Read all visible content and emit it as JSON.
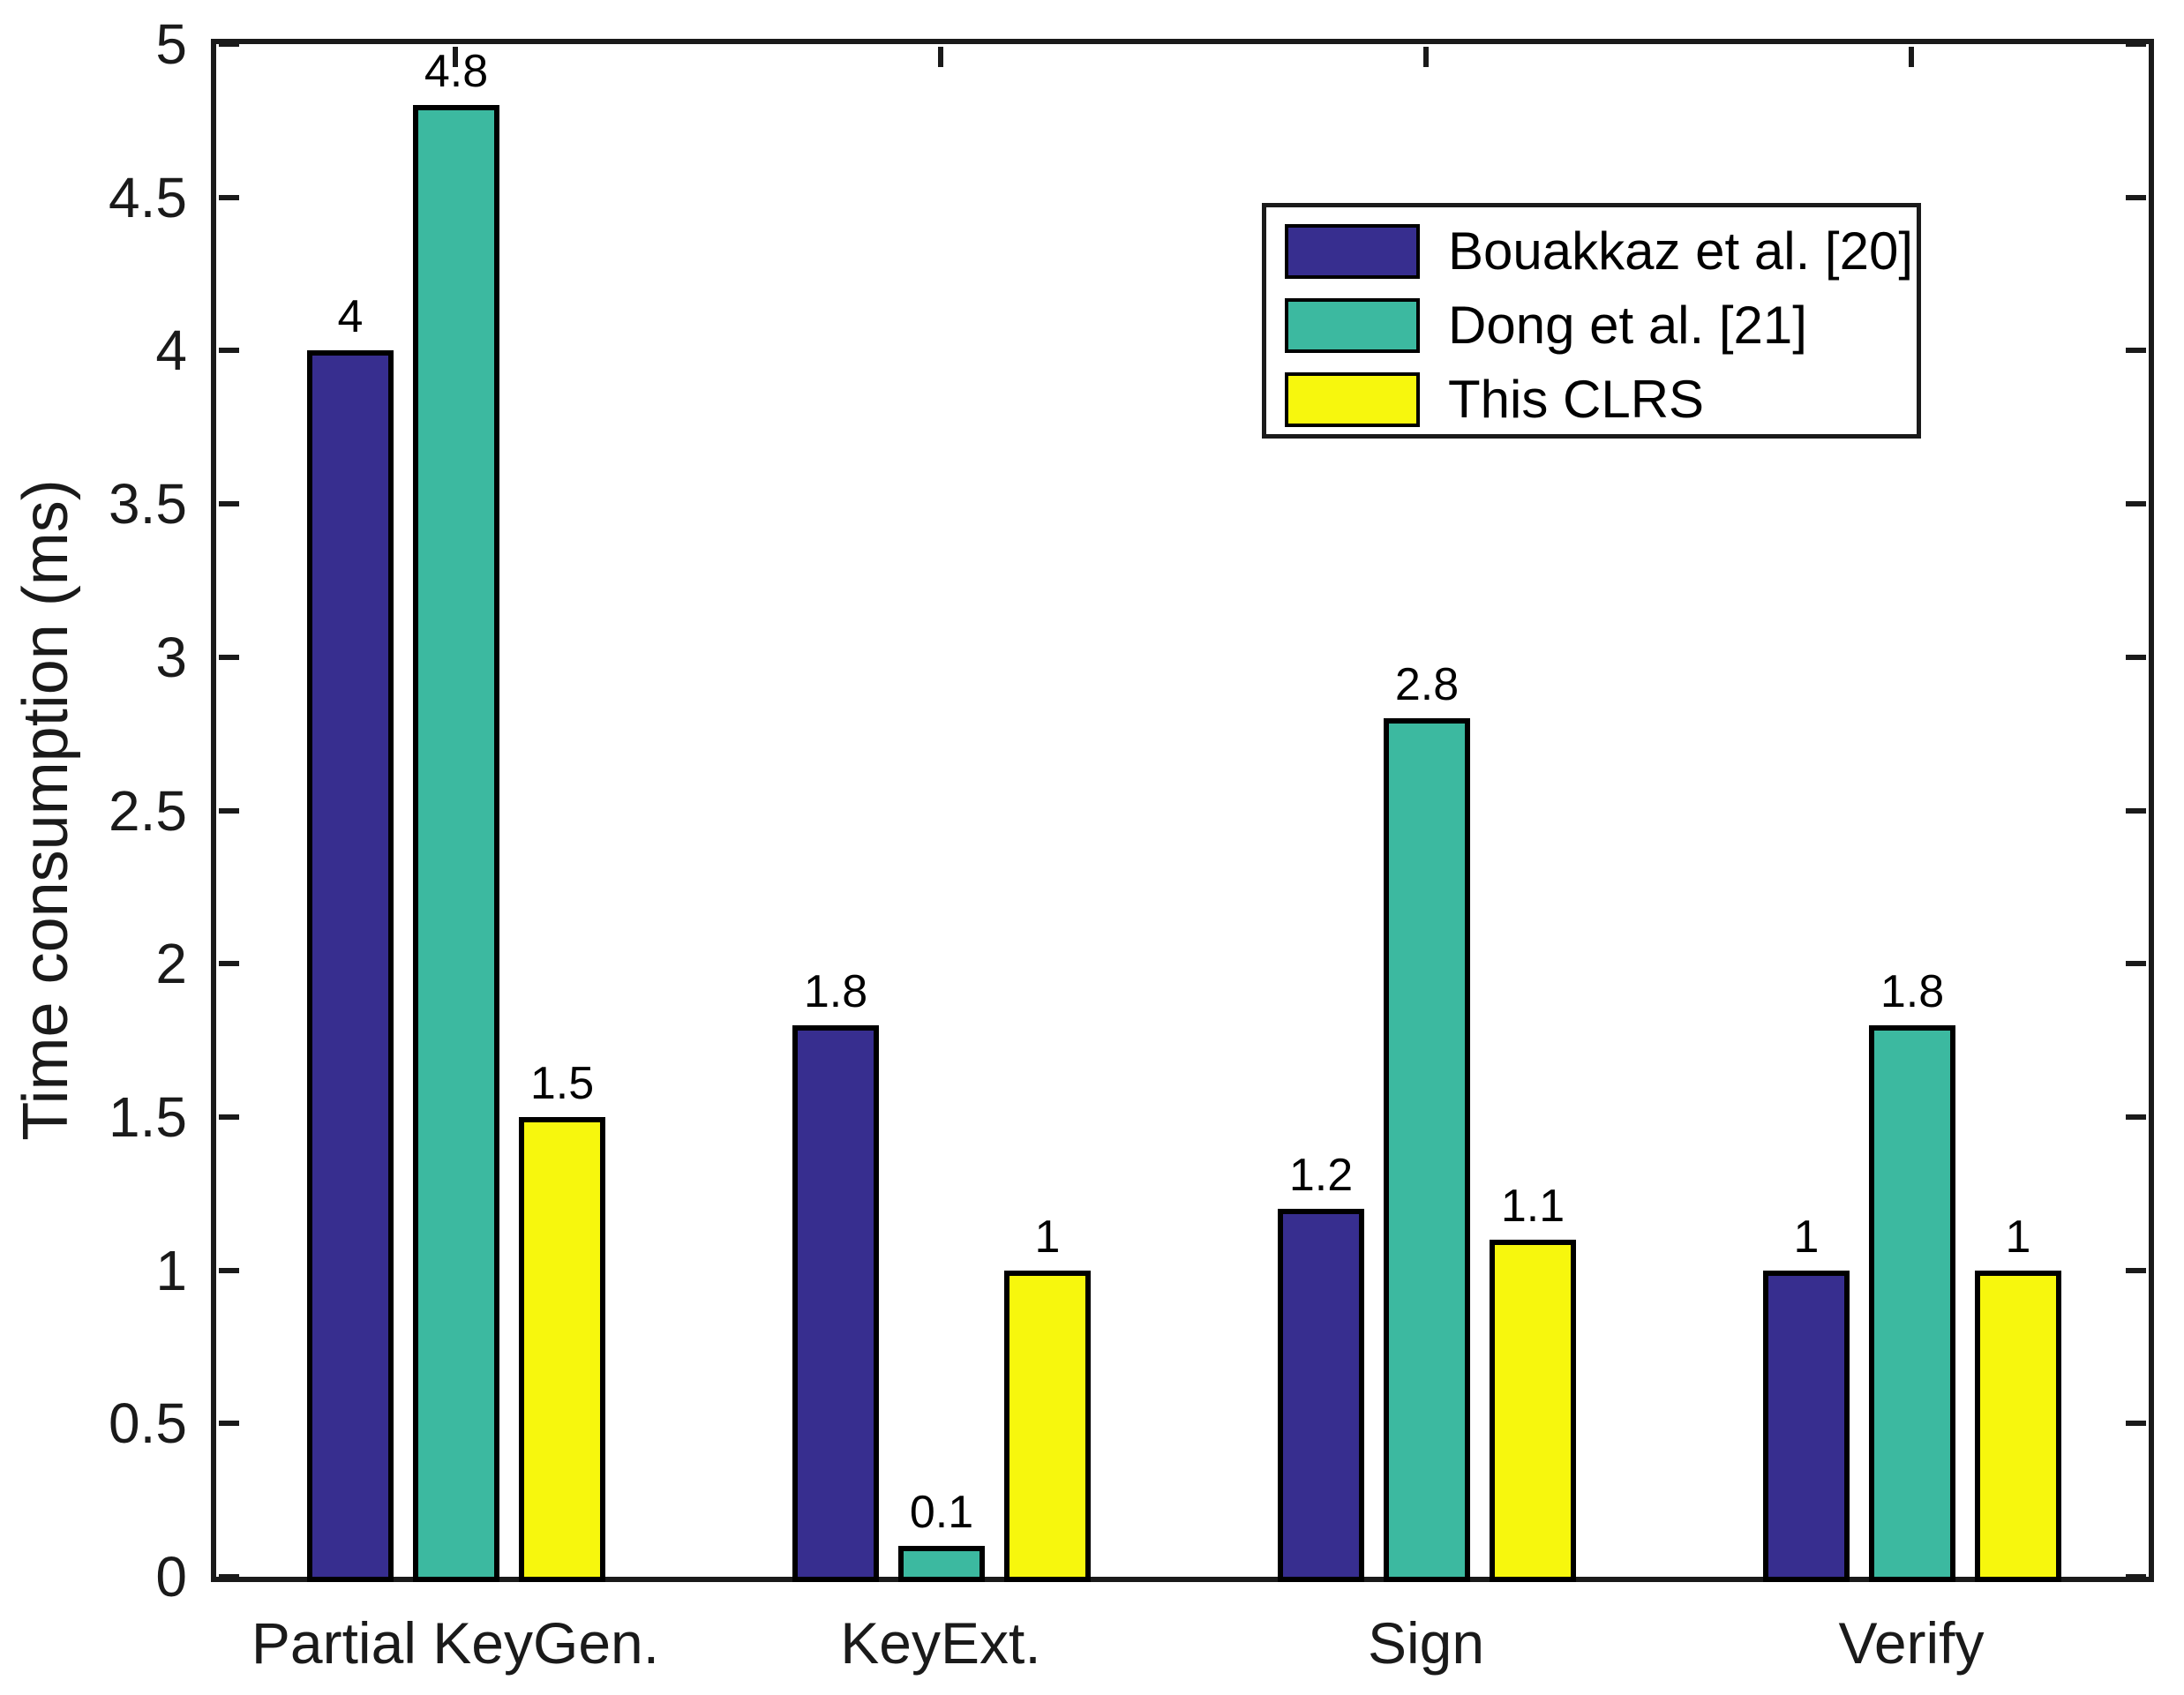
{
  "chart_data": {
    "type": "bar",
    "title": "",
    "xlabel": "",
    "ylabel": "Time consumption (ms)",
    "categories": [
      "Partial KeyGen.",
      "KeyExt.",
      "Sign",
      "Verify"
    ],
    "series": [
      {
        "name": "Bouakkaz et al. [20]",
        "color": "#372E8F",
        "values": [
          4,
          1.8,
          1.2,
          1
        ],
        "value_labels": [
          "4",
          "1.8",
          "1.2",
          "1"
        ]
      },
      {
        "name": "Dong et al. [21]",
        "color": "#3CB9A0",
        "values": [
          4.8,
          0.1,
          2.8,
          1.8
        ],
        "value_labels": [
          "4.8",
          "0.1",
          "2.8",
          "1.8"
        ]
      },
      {
        "name": "This CLRS",
        "color": "#F7F70D",
        "values": [
          1.5,
          1,
          1.1,
          1
        ],
        "value_labels": [
          "1.5",
          "1",
          "1.1",
          "1"
        ]
      }
    ],
    "ylim": [
      0,
      5
    ],
    "yticks": [
      0,
      0.5,
      1,
      1.5,
      2,
      2.5,
      3,
      3.5,
      4,
      4.5,
      5
    ],
    "ytick_labels": [
      "0",
      "0.5",
      "1",
      "1.5",
      "2",
      "2.5",
      "3",
      "3.5",
      "4",
      "4.5",
      "5"
    ],
    "grid": false,
    "legend": {
      "position": "top-right-inside",
      "entries": [
        "Bouakkaz et al. [20]",
        "Dong et al. [21]",
        "This CLRS"
      ]
    },
    "colors": {
      "bar_edge": "#000000",
      "axis": "#1a1a1a",
      "background": "#ffffff"
    }
  }
}
